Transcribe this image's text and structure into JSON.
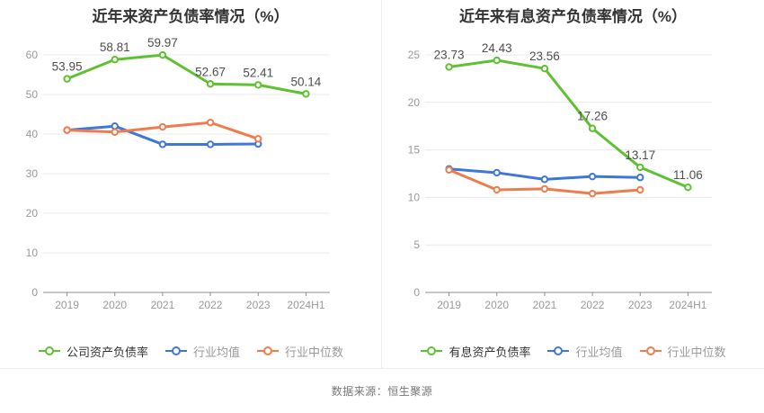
{
  "page": {
    "source_note": "数据来源：恒生聚源"
  },
  "colors": {
    "title_text": "#333333",
    "axis_tick_text": "#999999",
    "value_label_text": "#4d4d4d",
    "grid_line": "#e8e8ee",
    "axis_line": "#8c8c8c",
    "legend_primary_text": "#333333",
    "legend_secondary_text": "#999999",
    "series_green": "#5fc131",
    "series_blue": "#4076d9",
    "series_orange": "#ed7d4d"
  },
  "chart_data": [
    {
      "type": "line",
      "title": "近年来资产负债率情况（%）",
      "categories": [
        "2019",
        "2020",
        "2021",
        "2022",
        "2023",
        "2024H1"
      ],
      "y_ticks": [
        0,
        10,
        20,
        30,
        40,
        50,
        60
      ],
      "ylim": [
        0,
        60
      ],
      "xlabel": "",
      "ylabel": "",
      "grid": true,
      "legend_position": "bottom",
      "series": [
        {
          "name": "公司资产负债率",
          "color": "#5fc131",
          "values": [
            53.95,
            58.81,
            59.97,
            52.67,
            52.41,
            50.14
          ],
          "value_labels": [
            "53.95",
            "58.81",
            "59.97",
            "52.67",
            "52.41",
            "50.14"
          ]
        },
        {
          "name": "行业均值",
          "color": "#4076d9",
          "values": [
            41.0,
            42.0,
            37.4,
            37.4,
            37.5
          ]
        },
        {
          "name": "行业中位数",
          "color": "#ed7d4d",
          "values": [
            41.0,
            40.5,
            41.8,
            42.9,
            38.8
          ]
        }
      ]
    },
    {
      "type": "line",
      "title": "近年来有息资产负债率情况（%）",
      "categories": [
        "2019",
        "2020",
        "2021",
        "2022",
        "2023",
        "2024H1"
      ],
      "y_ticks": [
        0,
        5,
        10,
        15,
        20,
        25
      ],
      "ylim": [
        0,
        25
      ],
      "xlabel": "",
      "ylabel": "",
      "grid": true,
      "legend_position": "bottom",
      "series": [
        {
          "name": "有息资产负债率",
          "color": "#5fc131",
          "values": [
            23.73,
            24.43,
            23.56,
            17.26,
            13.17,
            11.06
          ],
          "value_labels": [
            "23.73",
            "24.43",
            "23.56",
            "17.26",
            "13.17",
            "11.06"
          ]
        },
        {
          "name": "行业均值",
          "color": "#4076d9",
          "values": [
            13.0,
            12.6,
            11.9,
            12.2,
            12.1
          ]
        },
        {
          "name": "行业中位数",
          "color": "#ed7d4d",
          "values": [
            12.9,
            10.8,
            10.9,
            10.4,
            10.8
          ]
        }
      ]
    }
  ]
}
